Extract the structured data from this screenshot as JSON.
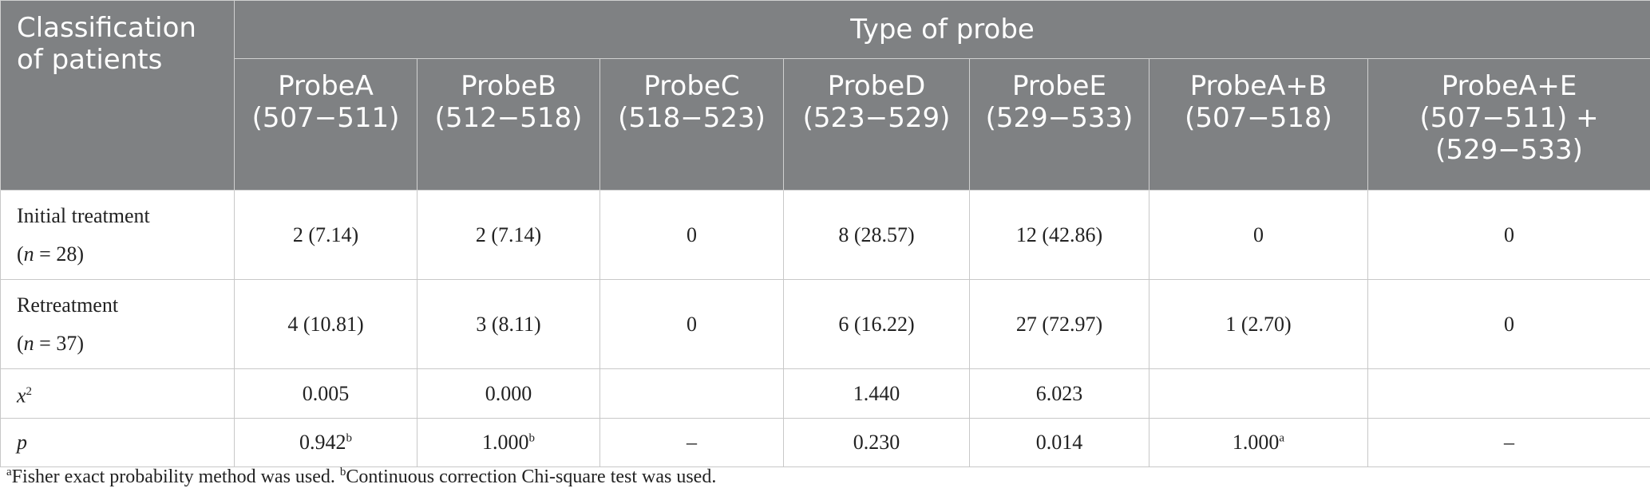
{
  "table": {
    "corner": "Classification of patients",
    "group_header": "Type of probe",
    "columns": [
      {
        "name": "ProbeA",
        "range": "(507−511)"
      },
      {
        "name": "ProbeB",
        "range": "(512−518)"
      },
      {
        "name": "ProbeC",
        "range": "(518−523)"
      },
      {
        "name": "ProbeD",
        "range": "(523−529)"
      },
      {
        "name": "ProbeE",
        "range": "(529−533)"
      },
      {
        "name": "ProbeA+B",
        "range": "(507−518)"
      },
      {
        "name": "ProbeA+E",
        "range": "(507−511) + (529−533)"
      }
    ],
    "rows": [
      {
        "label": "Initial treatment",
        "count": [
          "(",
          "n",
          " = 28)"
        ],
        "cells": [
          {
            "text": "2 (7.14)"
          },
          {
            "text": "2 (7.14)"
          },
          {
            "text": "0"
          },
          {
            "text": "8 (28.57)"
          },
          {
            "text": "12 (42.86)"
          },
          {
            "text": "0"
          },
          {
            "text": "0"
          }
        ]
      },
      {
        "label": "Retreatment",
        "count": [
          "(",
          "n",
          " = 37)"
        ],
        "cells": [
          {
            "text": "4 (10.81)"
          },
          {
            "text": "3 (8.11)"
          },
          {
            "text": "0"
          },
          {
            "text": "6 (16.22)"
          },
          {
            "text": "27 (72.97)"
          },
          {
            "text": "1 (2.70)"
          },
          {
            "text": "0"
          }
        ]
      },
      {
        "label_italic": "x",
        "label_sup": "2",
        "cells": [
          {
            "text": "0.005"
          },
          {
            "text": "0.000"
          },
          null,
          {
            "text": "1.440"
          },
          {
            "text": "6.023"
          },
          null,
          null
        ]
      },
      {
        "label_italic": "p",
        "cells": [
          {
            "text": "0.942",
            "sup": "b"
          },
          {
            "text": "1.000",
            "sup": "b"
          },
          {
            "text": "–"
          },
          {
            "text": "0.230"
          },
          {
            "text": "0.014"
          },
          {
            "text": "1.000",
            "sup": "a"
          },
          {
            "text": "–"
          }
        ]
      }
    ]
  },
  "footnotes": [
    {
      "mark": "a",
      "text": "Fisher exact probability method was used. "
    },
    {
      "mark": "b",
      "text": "Continuous correction Chi-square test was used."
    }
  ]
}
